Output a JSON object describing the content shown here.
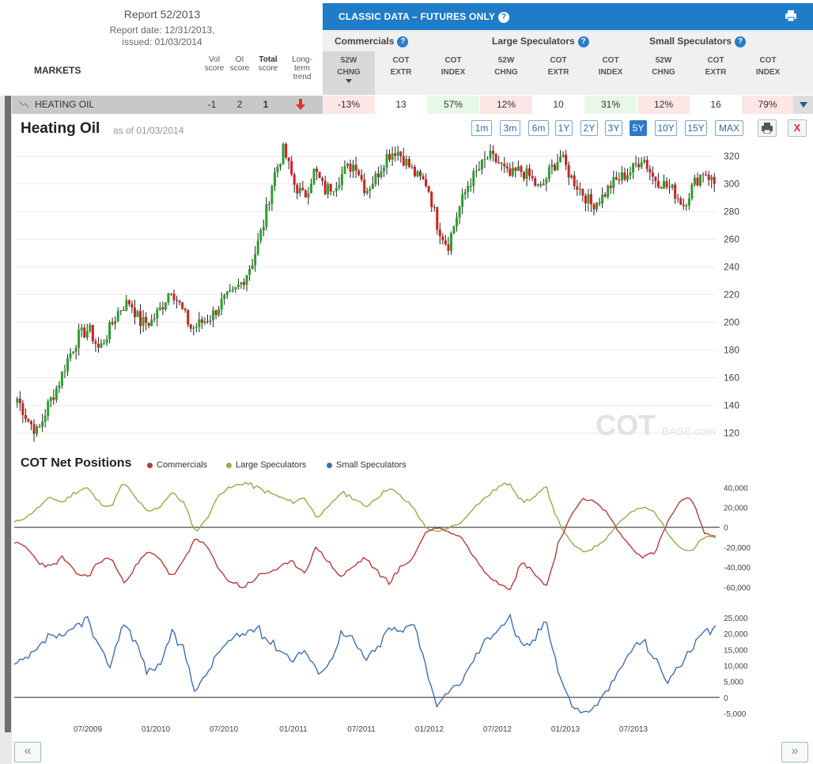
{
  "report": {
    "title": "Report 52/2013",
    "date_line": "Report date: 12/31/2013,",
    "issued_line": "issued: 01/03/2014"
  },
  "markets_header": "MARKETS",
  "score_headers": {
    "vol": [
      "Vol",
      "score"
    ],
    "oi": [
      "OI",
      "score"
    ],
    "total": [
      "Total",
      "score"
    ],
    "trend": [
      "Long-",
      "term",
      "trend"
    ]
  },
  "classic": {
    "title": "CLASSIC DATA – FUTURES ONLY",
    "help": "?",
    "groups": [
      {
        "name": "Commercials",
        "cols": [
          [
            "52W",
            "CHNG"
          ],
          [
            "COT",
            "EXTR"
          ],
          [
            "COT",
            "INDEX"
          ]
        ]
      },
      {
        "name": "Large Speculators",
        "cols": [
          [
            "52W",
            "CHNG"
          ],
          [
            "COT",
            "EXTR"
          ],
          [
            "COT",
            "INDEX"
          ]
        ]
      },
      {
        "name": "Small Speculators",
        "cols": [
          [
            "52W",
            "CHNG"
          ],
          [
            "COT",
            "EXTR"
          ],
          [
            "COT",
            "INDEX"
          ]
        ]
      }
    ]
  },
  "row": {
    "market": "HEATING OIL",
    "vol_score": "-1",
    "oi_score": "2",
    "total_score": "1",
    "values": [
      "-13%",
      "13",
      "57%",
      "12%",
      "10",
      "31%",
      "12%",
      "16",
      "79%"
    ],
    "trend_color": "#e03030"
  },
  "chart": {
    "title": "Heating Oil",
    "asof": "as of 01/03/2014",
    "ranges": [
      "1m",
      "3m",
      "6m",
      "1Y",
      "2Y",
      "3Y",
      "5Y",
      "10Y",
      "15Y",
      "MAX"
    ],
    "active_range": "5Y",
    "close": "X",
    "watermark_big": "COT",
    "watermark_small": "BASE.com",
    "price_ticks": [
      "320",
      "300",
      "280",
      "260",
      "240",
      "220",
      "200",
      "180",
      "160",
      "140",
      "120"
    ]
  },
  "cot": {
    "title": "COT Net Positions",
    "legend": [
      {
        "label": "Commercials",
        "color": "#b63b3b"
      },
      {
        "label": "Large Speculators",
        "color": "#8db04a"
      },
      {
        "label": "Small Speculators",
        "color": "#3f6fb0"
      }
    ],
    "upper_ticks": [
      "40,000",
      "20,000",
      "0",
      "-20,000",
      "-40,000",
      "-60,000"
    ],
    "lower_ticks": [
      "25,000",
      "20,000",
      "15,000",
      "10,000",
      "5,000",
      "0",
      "-5,000"
    ],
    "x_ticks": [
      "07/2009",
      "01/2010",
      "07/2010",
      "01/2011",
      "07/2011",
      "01/2012",
      "07/2012",
      "01/2013",
      "07/2013"
    ]
  },
  "nav": {
    "prev": "«",
    "next": "»"
  },
  "chart_data": [
    {
      "type": "candlestick",
      "title": "Heating Oil",
      "ylim": [
        110,
        330
      ],
      "x_range": [
        "01/2009",
        "12/2013"
      ],
      "series": [
        {
          "values": [
            145,
            130,
            120,
            140,
            155,
            175,
            190,
            195,
            180,
            195,
            210,
            215,
            200,
            200,
            210,
            225,
            210,
            195,
            200,
            205,
            215,
            220,
            230,
            245,
            270,
            305,
            325,
            300,
            290,
            310,
            295,
            300,
            310,
            315,
            295,
            305,
            320,
            325,
            315,
            305,
            300,
            270,
            255,
            280,
            300,
            310,
            320,
            315,
            305,
            310,
            305,
            295,
            310,
            320,
            305,
            295,
            285,
            290,
            300,
            305,
            310,
            320,
            305,
            300,
            295,
            285,
            300,
            310,
            300
          ]
        }
      ]
    },
    {
      "type": "line",
      "title": "COT Net Positions",
      "ylim": [
        -70000,
        45000
      ],
      "x_ticks": [
        "07/2009",
        "01/2010",
        "07/2010",
        "01/2011",
        "07/2011",
        "01/2012",
        "07/2012",
        "01/2013",
        "07/2013"
      ],
      "series": [
        {
          "name": "Commercials",
          "values": [
            -15000,
            -20000,
            -35000,
            -40000,
            -30000,
            -45000,
            -50000,
            -35000,
            -30000,
            -55000,
            -40000,
            -25000,
            -30000,
            -50000,
            -35000,
            -10000,
            -20000,
            -45000,
            -55000,
            -60000,
            -50000,
            -45000,
            -40000,
            -35000,
            -45000,
            -20000,
            -35000,
            -50000,
            -40000,
            -30000,
            -45000,
            -55000,
            -40000,
            -30000,
            -5000,
            0,
            -5000,
            -10000,
            -30000,
            -45000,
            -55000,
            -60000,
            -35000,
            -45000,
            -60000,
            -15000,
            10000,
            30000,
            25000,
            15000,
            -5000,
            -20000,
            -30000,
            -25000,
            5000,
            25000,
            30000,
            -5000,
            -10000
          ]
        },
        {
          "name": "Large Speculators",
          "values": [
            5000,
            10000,
            20000,
            30000,
            25000,
            35000,
            40000,
            25000,
            20000,
            45000,
            30000,
            15000,
            20000,
            35000,
            25000,
            -5000,
            10000,
            35000,
            40000,
            45000,
            40000,
            35000,
            30000,
            25000,
            30000,
            10000,
            20000,
            35000,
            30000,
            20000,
            30000,
            40000,
            30000,
            20000,
            0,
            -5000,
            0,
            5000,
            20000,
            30000,
            40000,
            45000,
            25000,
            30000,
            40000,
            5000,
            -15000,
            -25000,
            -20000,
            -10000,
            5000,
            15000,
            20000,
            15000,
            -5000,
            -20000,
            -25000,
            -10000,
            -10000
          ]
        },
        {
          "name": "Small Speculators",
          "values": [
            10000,
            12000,
            15000,
            20000,
            18000,
            22000,
            25000,
            15000,
            10000,
            24000,
            18000,
            8000,
            10000,
            20000,
            15000,
            2000,
            8000,
            15000,
            18000,
            20000,
            22000,
            18000,
            15000,
            12000,
            15000,
            8000,
            10000,
            20000,
            18000,
            12000,
            15000,
            22000,
            20000,
            25000,
            10000,
            -3000,
            2000,
            5000,
            12000,
            18000,
            22000,
            25000,
            15000,
            18000,
            25000,
            8000,
            -2000,
            -5000,
            -3000,
            2000,
            8000,
            15000,
            18000,
            12000,
            5000,
            10000,
            15000,
            20000,
            21000
          ]
        }
      ]
    }
  ]
}
